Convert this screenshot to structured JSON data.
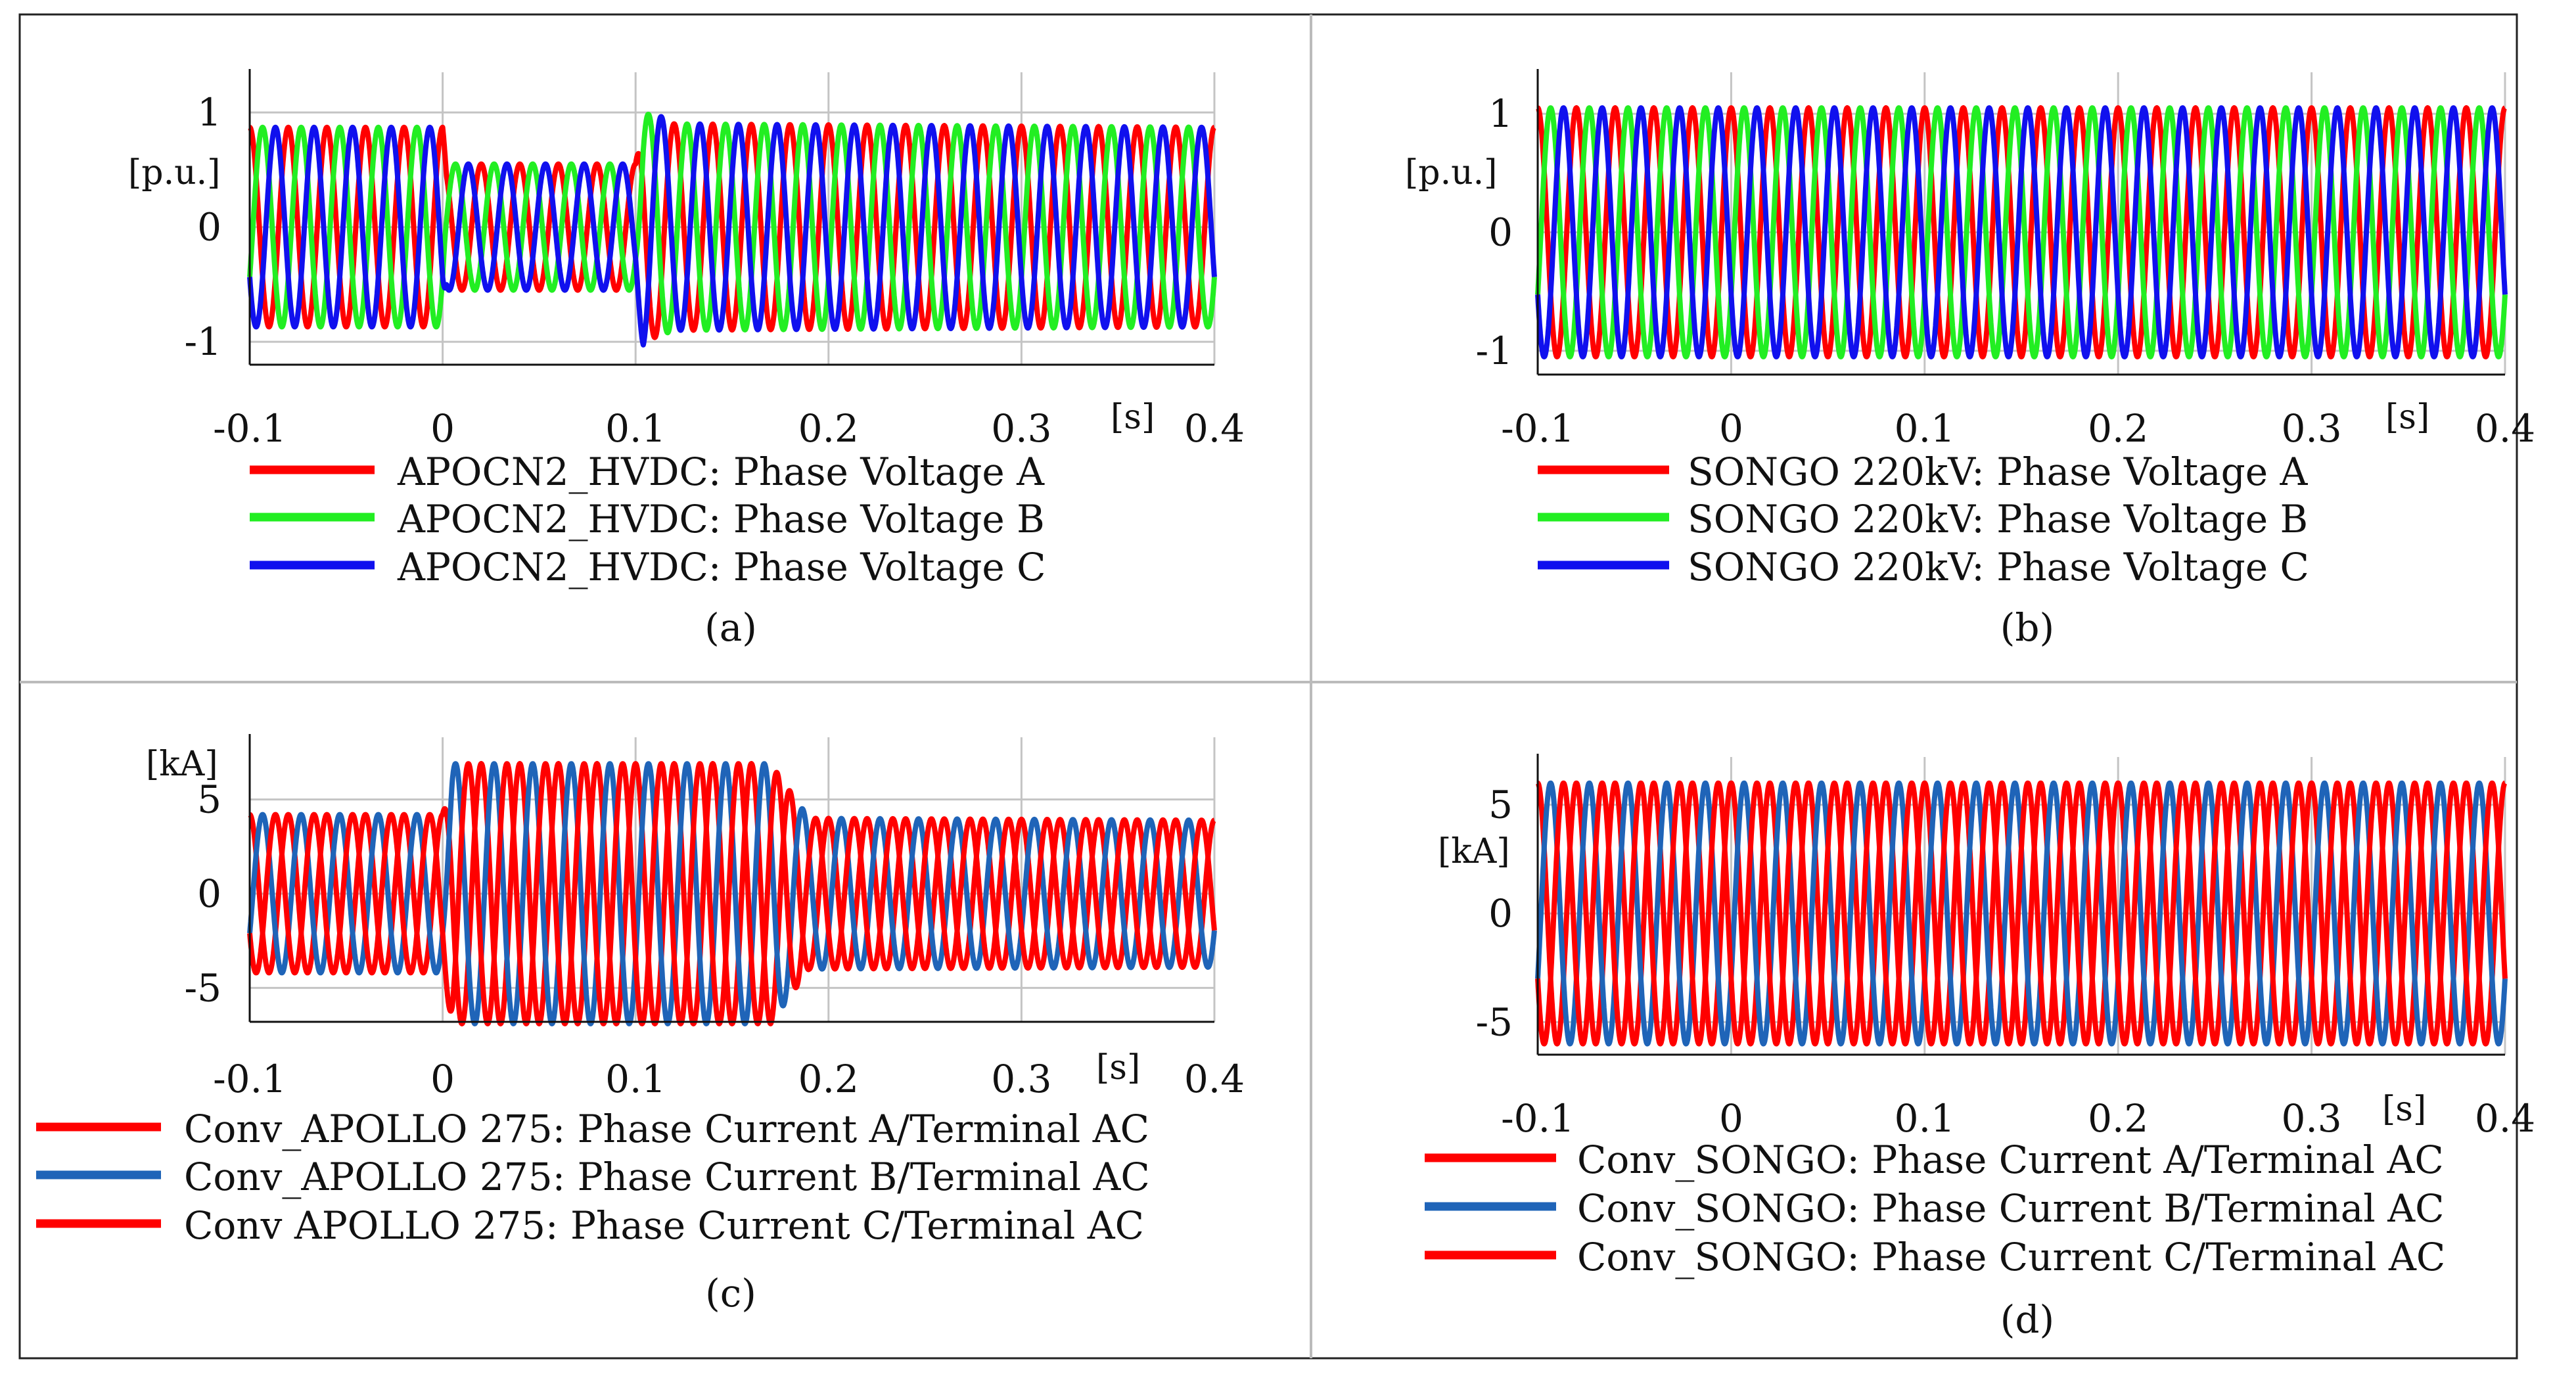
{
  "figure": {
    "colors": {
      "red": "#ff0000",
      "green": "#22ee22",
      "blue": "#1010ee",
      "steel_blue": "#1f64b8",
      "grid": "#c4c4c4"
    }
  },
  "chart_data": [
    {
      "id": "a",
      "type": "line",
      "caption": "(a)",
      "xlabel": "[s]",
      "ylabel": "[p.u.]",
      "xlim": [
        -0.1,
        0.4
      ],
      "ylim": [
        -1.2,
        1.35
      ],
      "xticks": [
        -0.1,
        0,
        0.1,
        0.2,
        0.3,
        0.4
      ],
      "xtick_labels": [
        "-0.1",
        "0",
        "0.1",
        "0.2",
        "0.3",
        "0.4"
      ],
      "yticks": [
        1,
        0,
        -1
      ],
      "ytick_labels": [
        "1",
        "0",
        "-1"
      ],
      "frequency_hz": 50,
      "series": [
        {
          "name": "APOCN2_HVDC: Phase Voltage A",
          "color": "#ff0000",
          "phase_deg": 0,
          "envelope": [
            [
              -0.1,
              0.87
            ],
            [
              0.0,
              0.87
            ],
            [
              0.002,
              0.55
            ],
            [
              0.1,
              0.55
            ],
            [
              0.104,
              1.0
            ],
            [
              0.12,
              0.9
            ],
            [
              0.4,
              0.87
            ]
          ]
        },
        {
          "name": "APOCN2_HVDC: Phase Voltage B",
          "color": "#22ee22",
          "phase_deg": -120,
          "envelope": [
            [
              -0.1,
              0.87
            ],
            [
              0.0,
              0.87
            ],
            [
              0.002,
              0.55
            ],
            [
              0.1,
              0.55
            ],
            [
              0.104,
              1.0
            ],
            [
              0.12,
              0.9
            ],
            [
              0.4,
              0.87
            ]
          ]
        },
        {
          "name": "APOCN2_HVDC: Phase Voltage C",
          "color": "#1010ee",
          "phase_deg": 120,
          "envelope": [
            [
              -0.1,
              0.87
            ],
            [
              0.0,
              0.87
            ],
            [
              0.002,
              0.55
            ],
            [
              0.1,
              0.55
            ],
            [
              0.104,
              1.05
            ],
            [
              0.12,
              0.9
            ],
            [
              0.4,
              0.87
            ]
          ]
        }
      ]
    },
    {
      "id": "b",
      "type": "line",
      "caption": "(b)",
      "xlabel": "[s]",
      "ylabel": "[p.u.]",
      "xlim": [
        -0.1,
        0.4
      ],
      "ylim": [
        -1.2,
        1.35
      ],
      "xticks": [
        -0.1,
        0,
        0.1,
        0.2,
        0.3,
        0.4
      ],
      "xtick_labels": [
        "-0.1",
        "0",
        "0.1",
        "0.2",
        "0.3",
        "0.4"
      ],
      "yticks": [
        1,
        0,
        -1
      ],
      "ytick_labels": [
        "1",
        "0",
        "-1"
      ],
      "frequency_hz": 50,
      "series": [
        {
          "name": "SONGO 220kV: Phase Voltage A",
          "color": "#ff0000",
          "phase_deg": 0,
          "envelope": [
            [
              -0.1,
              1.05
            ],
            [
              0.4,
              1.05
            ]
          ]
        },
        {
          "name": "SONGO 220kV: Phase Voltage B",
          "color": "#22ee22",
          "phase_deg": -120,
          "envelope": [
            [
              -0.1,
              1.05
            ],
            [
              0.4,
              1.05
            ]
          ]
        },
        {
          "name": "SONGO 220kV: Phase Voltage C",
          "color": "#1010ee",
          "phase_deg": 120,
          "envelope": [
            [
              -0.1,
              1.05
            ],
            [
              0.4,
              1.05
            ]
          ]
        }
      ]
    },
    {
      "id": "c",
      "type": "line",
      "caption": "(c)",
      "xlabel": "[s]",
      "ylabel": "[kA]",
      "xlim": [
        -0.1,
        0.4
      ],
      "ylim": [
        -6.8,
        8.3
      ],
      "xticks": [
        -0.1,
        0,
        0.1,
        0.2,
        0.3,
        0.4
      ],
      "xtick_labels": [
        "-0.1",
        "0",
        "0.1",
        "0.2",
        "0.3",
        "0.4"
      ],
      "yticks": [
        5,
        0,
        -5
      ],
      "ytick_labels": [
        "5",
        "0",
        "-5"
      ],
      "frequency_hz": 50,
      "series": [
        {
          "name": "Conv_APOLLO 275: Phase Current A/Terminal AC",
          "color": "#ff0000",
          "phase_deg": 0,
          "envelope": [
            [
              -0.1,
              4.2
            ],
            [
              0.0,
              4.2
            ],
            [
              0.005,
              6.9
            ],
            [
              0.17,
              6.9
            ],
            [
              0.19,
              4.0
            ],
            [
              0.4,
              3.9
            ]
          ]
        },
        {
          "name": "Conv_APOLLO 275: Phase Current B/Terminal AC",
          "color": "#1f64b8",
          "phase_deg": -120,
          "envelope": [
            [
              -0.1,
              4.2
            ],
            [
              0.0,
              4.2
            ],
            [
              0.005,
              6.9
            ],
            [
              0.17,
              6.9
            ],
            [
              0.19,
              4.0
            ],
            [
              0.4,
              3.9
            ]
          ]
        },
        {
          "name": "Conv  APOLLO 275: Phase Current C/Terminal AC",
          "color": "#ff0000",
          "phase_deg": 120,
          "envelope": [
            [
              -0.1,
              4.2
            ],
            [
              0.0,
              4.2
            ],
            [
              0.005,
              6.9
            ],
            [
              0.17,
              6.9
            ],
            [
              0.19,
              4.0
            ],
            [
              0.4,
              3.9
            ]
          ]
        }
      ]
    },
    {
      "id": "d",
      "type": "line",
      "caption": "(d)",
      "xlabel": "[s]",
      "ylabel": "[kA]",
      "xlim": [
        -0.1,
        0.4
      ],
      "ylim": [
        -6.5,
        7.2
      ],
      "xticks": [
        -0.1,
        0,
        0.1,
        0.2,
        0.3,
        0.4
      ],
      "xtick_labels": [
        "-0.1",
        "0",
        "0.1",
        "0.2",
        "0.3",
        "0.4"
      ],
      "yticks": [
        5,
        0,
        -5
      ],
      "ytick_labels": [
        "5",
        "0",
        "-5"
      ],
      "frequency_hz": 50,
      "series": [
        {
          "name": "Conv_SONGO: Phase Current A/Terminal AC",
          "color": "#ff0000",
          "phase_deg": 0,
          "envelope": [
            [
              -0.1,
              6.0
            ],
            [
              0.4,
              6.0
            ]
          ]
        },
        {
          "name": "Conv_SONGO: Phase Current B/Terminal AC",
          "color": "#1f64b8",
          "phase_deg": -120,
          "envelope": [
            [
              -0.1,
              6.0
            ],
            [
              0.4,
              6.0
            ]
          ]
        },
        {
          "name": "Conv_SONGO: Phase Current C/Terminal AC",
          "color": "#ff0000",
          "phase_deg": 120,
          "envelope": [
            [
              -0.1,
              6.0
            ],
            [
              0.4,
              6.0
            ]
          ]
        }
      ]
    }
  ]
}
